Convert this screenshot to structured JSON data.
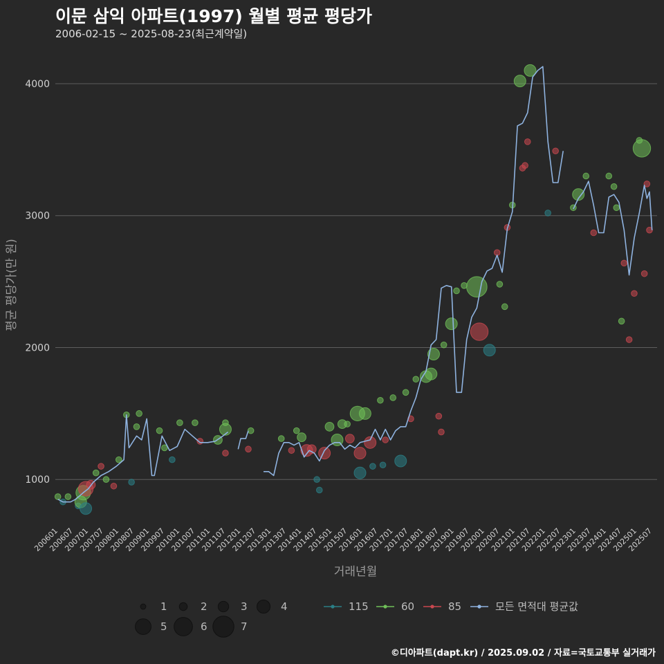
{
  "header": {
    "title": "이문 삼익 아파트(1997) 월별 평균 평당가",
    "subtitle": "2006-02-15 ~ 2025-08-23(최근계약일)",
    "caption": "©디아파트(dapt.kr) / 2025.09.02 / 자료=국토교통부 실거래가"
  },
  "chart_data": {
    "type": "line",
    "title": "이문 삼익 아파트(1997) 월별 평균 평당가",
    "subtitle": "2006-02-15 ~ 2025-08-23(최근계약일)",
    "xlabel": "거래년월",
    "ylabel": "평균 평당가(만 원)",
    "ylim": [
      650,
      4330
    ],
    "xlim": [
      "2006-01",
      "2025-10"
    ],
    "y_ticks": [
      1000,
      2000,
      3000,
      4000
    ],
    "x_ticks": [
      "200601",
      "200607",
      "200701",
      "200707",
      "200801",
      "200807",
      "200901",
      "200907",
      "201001",
      "201007",
      "201101",
      "201107",
      "201201",
      "201207",
      "201301",
      "201307",
      "201401",
      "201407",
      "201501",
      "201507",
      "201601",
      "201607",
      "201701",
      "201707",
      "201801",
      "201807",
      "201901",
      "201907",
      "202001",
      "202007",
      "202101",
      "202107",
      "202201",
      "202207",
      "202301",
      "202307",
      "202401",
      "202407",
      "202501",
      "202507"
    ],
    "grid": true,
    "legend_position": "bottom",
    "colors": {
      "115": "#2a7f86",
      "60": "#6fbf58",
      "85": "#c9474f",
      "avg": "#8fb3e0"
    },
    "size_legend": {
      "title": "",
      "values": [
        1,
        2,
        3,
        4,
        5,
        6,
        7
      ]
    },
    "color_legend": [
      {
        "key": "115",
        "label": "115"
      },
      {
        "key": "60",
        "label": "60"
      },
      {
        "key": "85",
        "label": "85"
      },
      {
        "key": "avg",
        "label": "모든 면적대 평균값"
      }
    ],
    "avg_line": [
      [
        "2006-02",
        850
      ],
      [
        "2006-04",
        830
      ],
      [
        "2006-07",
        830
      ],
      [
        "2006-09",
        850
      ],
      [
        "2006-12",
        900
      ],
      [
        "2007-02",
        930
      ],
      [
        "2007-04",
        980
      ],
      [
        "2007-07",
        1030
      ],
      [
        "2007-10",
        1060
      ],
      [
        "2008-01",
        1100
      ],
      [
        "2008-04",
        1150
      ],
      [
        "2008-05",
        1490
      ],
      [
        "2008-06",
        1240
      ],
      [
        "2008-09",
        1330
      ],
      [
        "2008-11",
        1300
      ],
      [
        "2009-01",
        1460
      ],
      [
        "2009-03",
        1030
      ],
      [
        "2009-04",
        1030
      ],
      [
        "2009-07",
        1330
      ],
      [
        "2009-10",
        1220
      ],
      [
        "2010-01",
        1250
      ],
      [
        "2010-04",
        1380
      ],
      [
        "2010-07",
        1330
      ],
      [
        "2010-10",
        1280
      ],
      [
        "2011-01",
        1280
      ],
      [
        "2011-04",
        1290
      ],
      [
        "2011-07",
        1330
      ],
      [
        "2011-09",
        1360
      ],
      null,
      [
        "2012-01",
        1230
      ],
      [
        "2012-02",
        1310
      ],
      [
        "2012-04",
        1310
      ],
      [
        "2012-05",
        1370
      ],
      null,
      [
        "2012-11",
        1060
      ],
      [
        "2013-01",
        1060
      ],
      [
        "2013-03",
        1030
      ],
      [
        "2013-05",
        1200
      ],
      [
        "2013-07",
        1280
      ],
      [
        "2013-09",
        1280
      ],
      [
        "2013-11",
        1260
      ],
      [
        "2014-01",
        1280
      ],
      [
        "2014-03",
        1170
      ],
      [
        "2014-05",
        1220
      ],
      [
        "2014-07",
        1200
      ],
      [
        "2014-09",
        1140
      ],
      [
        "2014-11",
        1220
      ],
      [
        "2015-01",
        1260
      ],
      [
        "2015-03",
        1280
      ],
      [
        "2015-05",
        1280
      ],
      [
        "2015-07",
        1230
      ],
      [
        "2015-09",
        1260
      ],
      [
        "2015-11",
        1240
      ],
      [
        "2016-01",
        1280
      ],
      [
        "2016-03",
        1290
      ],
      [
        "2016-05",
        1300
      ],
      [
        "2016-07",
        1380
      ],
      [
        "2016-09",
        1300
      ],
      [
        "2016-11",
        1380
      ],
      [
        "2017-01",
        1300
      ],
      [
        "2017-03",
        1370
      ],
      [
        "2017-05",
        1400
      ],
      [
        "2017-07",
        1400
      ],
      [
        "2017-09",
        1520
      ],
      [
        "2017-11",
        1620
      ],
      [
        "2018-01",
        1760
      ],
      [
        "2018-03",
        1820
      ],
      [
        "2018-05",
        2020
      ],
      [
        "2018-07",
        2060
      ],
      [
        "2018-09",
        2450
      ],
      [
        "2018-11",
        2470
      ],
      [
        "2019-01",
        2460
      ],
      [
        "2019-03",
        1660
      ],
      [
        "2019-05",
        1660
      ],
      [
        "2019-07",
        2060
      ],
      [
        "2019-09",
        2230
      ],
      [
        "2019-11",
        2300
      ],
      [
        "2020-01",
        2500
      ],
      [
        "2020-03",
        2580
      ],
      [
        "2020-05",
        2600
      ],
      [
        "2020-07",
        2700
      ],
      [
        "2020-09",
        2570
      ],
      [
        "2020-11",
        2900
      ],
      [
        "2021-01",
        3030
      ],
      [
        "2021-03",
        3680
      ],
      [
        "2021-05",
        3700
      ],
      [
        "2021-07",
        3780
      ],
      [
        "2021-09",
        4050
      ],
      [
        "2021-11",
        4100
      ],
      [
        "2022-01",
        4130
      ],
      [
        "2022-03",
        3560
      ],
      [
        "2022-05",
        3250
      ],
      [
        "2022-07",
        3250
      ],
      [
        "2022-09",
        3490
      ],
      null,
      [
        "2023-01",
        3050
      ],
      [
        "2023-03",
        3130
      ],
      [
        "2023-05",
        3180
      ],
      [
        "2023-07",
        3260
      ],
      [
        "2023-09",
        3080
      ],
      [
        "2023-11",
        2870
      ],
      [
        "2024-01",
        2870
      ],
      [
        "2024-03",
        3140
      ],
      [
        "2024-05",
        3160
      ],
      [
        "2024-07",
        3100
      ],
      [
        "2024-09",
        2890
      ],
      [
        "2024-11",
        2550
      ],
      [
        "2025-01",
        2830
      ],
      [
        "2025-03",
        3020
      ],
      [
        "2025-05",
        3230
      ],
      [
        "2025-06",
        3130
      ],
      [
        "2025-07",
        3180
      ],
      [
        "2025-08",
        2890
      ]
    ],
    "points": [
      [
        "2006-02",
        870,
        "60",
        1
      ],
      [
        "2006-04",
        830,
        "115",
        1
      ],
      [
        "2006-06",
        870,
        "60",
        1
      ],
      [
        "2006-10",
        800,
        "115",
        1
      ],
      [
        "2006-11",
        830,
        "60",
        3
      ],
      [
        "2006-12",
        900,
        "60",
        4
      ],
      [
        "2007-01",
        780,
        "115",
        3
      ],
      [
        "2007-01",
        930,
        "85",
        4
      ],
      [
        "2007-03",
        960,
        "85",
        2
      ],
      [
        "2007-05",
        1050,
        "60",
        1
      ],
      [
        "2007-07",
        1100,
        "85",
        1
      ],
      [
        "2007-09",
        1000,
        "60",
        1
      ],
      [
        "2007-12",
        950,
        "85",
        1
      ],
      [
        "2008-02",
        1150,
        "60",
        1
      ],
      [
        "2008-05",
        1490,
        "60",
        1
      ],
      [
        "2008-07",
        980,
        "115",
        1
      ],
      [
        "2008-09",
        1400,
        "60",
        1
      ],
      [
        "2008-10",
        1500,
        "60",
        1
      ],
      [
        "2009-06",
        1370,
        "60",
        1
      ],
      [
        "2009-08",
        1240,
        "60",
        1
      ],
      [
        "2009-11",
        1150,
        "115",
        1
      ],
      [
        "2010-02",
        1430,
        "60",
        1
      ],
      [
        "2010-08",
        1430,
        "60",
        1
      ],
      [
        "2010-10",
        1290,
        "85",
        1
      ],
      [
        "2011-05",
        1300,
        "60",
        2
      ],
      [
        "2011-08",
        1380,
        "60",
        3
      ],
      [
        "2011-08",
        1430,
        "60",
        1
      ],
      [
        "2011-08",
        1200,
        "85",
        1
      ],
      [
        "2012-05",
        1230,
        "85",
        1
      ],
      [
        "2012-06",
        1370,
        "60",
        1
      ],
      [
        "2013-06",
        1310,
        "60",
        1
      ],
      [
        "2013-10",
        1220,
        "85",
        1
      ],
      [
        "2013-12",
        1370,
        "60",
        1
      ],
      [
        "2014-02",
        1320,
        "60",
        2
      ],
      [
        "2014-04",
        1220,
        "85",
        3
      ],
      [
        "2014-06",
        1230,
        "85",
        2
      ],
      [
        "2014-08",
        1000,
        "115",
        1
      ],
      [
        "2014-09",
        920,
        "115",
        1
      ],
      [
        "2014-11",
        1200,
        "85",
        3
      ],
      [
        "2015-01",
        1400,
        "60",
        2
      ],
      [
        "2015-04",
        1300,
        "60",
        3
      ],
      [
        "2015-06",
        1420,
        "60",
        2
      ],
      [
        "2015-08",
        1420,
        "60",
        1
      ],
      [
        "2015-09",
        1310,
        "85",
        2
      ],
      [
        "2015-12",
        1500,
        "60",
        4
      ],
      [
        "2016-01",
        1050,
        "115",
        3
      ],
      [
        "2016-01",
        1200,
        "85",
        3
      ],
      [
        "2016-03",
        1500,
        "60",
        3
      ],
      [
        "2016-05",
        1280,
        "85",
        3
      ],
      [
        "2016-06",
        1100,
        "115",
        1
      ],
      [
        "2016-09",
        1600,
        "60",
        1
      ],
      [
        "2016-10",
        1110,
        "115",
        1
      ],
      [
        "2016-11",
        1300,
        "85",
        1
      ],
      [
        "2017-02",
        1620,
        "60",
        1
      ],
      [
        "2017-05",
        1140,
        "115",
        3
      ],
      [
        "2017-07",
        1660,
        "60",
        1
      ],
      [
        "2017-09",
        1460,
        "85",
        1
      ],
      [
        "2017-11",
        1760,
        "60",
        1
      ],
      [
        "2018-03",
        1780,
        "60",
        3
      ],
      [
        "2018-05",
        1800,
        "60",
        3
      ],
      [
        "2018-06",
        1950,
        "60",
        3
      ],
      [
        "2018-08",
        1480,
        "85",
        1
      ],
      [
        "2018-09",
        1360,
        "85",
        1
      ],
      [
        "2018-10",
        2020,
        "60",
        1
      ],
      [
        "2019-01",
        2180,
        "60",
        3
      ],
      [
        "2019-03",
        2430,
        "60",
        1
      ],
      [
        "2019-06",
        2470,
        "60",
        1
      ],
      [
        "2019-11",
        2460,
        "60",
        6
      ],
      [
        "2019-12",
        2120,
        "85",
        5
      ],
      [
        "2020-04",
        1980,
        "115",
        3
      ],
      [
        "2020-07",
        2720,
        "85",
        1
      ],
      [
        "2020-08",
        2480,
        "60",
        1
      ],
      [
        "2020-10",
        2310,
        "60",
        1
      ],
      [
        "2020-11",
        2910,
        "85",
        1
      ],
      [
        "2021-01",
        3080,
        "60",
        1
      ],
      [
        "2021-04",
        4020,
        "60",
        3
      ],
      [
        "2021-05",
        3360,
        "85",
        1
      ],
      [
        "2021-06",
        3380,
        "85",
        1
      ],
      [
        "2021-07",
        3560,
        "85",
        1
      ],
      [
        "2021-08",
        4100,
        "60",
        3
      ],
      [
        "2022-03",
        3020,
        "115",
        1
      ],
      [
        "2022-06",
        3490,
        "85",
        1
      ],
      [
        "2023-01",
        3060,
        "60",
        1
      ],
      [
        "2023-03",
        3160,
        "60",
        3
      ],
      [
        "2023-06",
        3300,
        "60",
        1
      ],
      [
        "2023-09",
        2870,
        "85",
        1
      ],
      [
        "2024-03",
        3300,
        "60",
        1
      ],
      [
        "2024-05",
        3220,
        "60",
        1
      ],
      [
        "2024-06",
        3060,
        "60",
        1
      ],
      [
        "2024-08",
        2200,
        "60",
        1
      ],
      [
        "2024-09",
        2640,
        "85",
        1
      ],
      [
        "2024-11",
        2060,
        "85",
        1
      ],
      [
        "2025-01",
        2410,
        "85",
        1
      ],
      [
        "2025-03",
        3570,
        "60",
        1
      ],
      [
        "2025-04",
        3510,
        "60",
        5
      ],
      [
        "2025-05",
        2560,
        "85",
        1
      ],
      [
        "2025-06",
        3240,
        "85",
        1
      ],
      [
        "2025-07",
        2890,
        "85",
        1
      ]
    ]
  }
}
